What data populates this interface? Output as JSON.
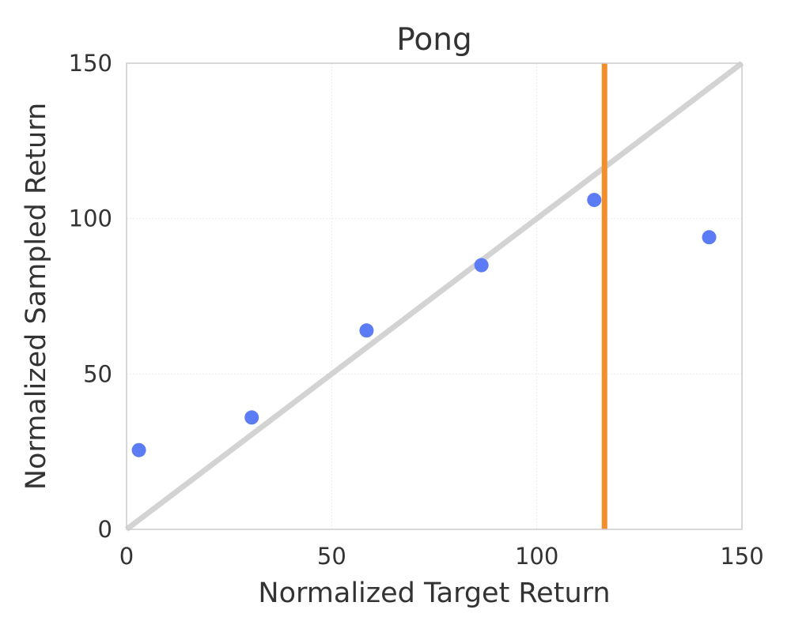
{
  "chart_data": {
    "type": "scatter",
    "title": "Pong",
    "xlabel": "Normalized Target Return",
    "ylabel": "Normalized Sampled Return",
    "xlim": [
      0,
      150
    ],
    "ylim": [
      0,
      150
    ],
    "xticks": [
      0,
      50,
      100,
      150
    ],
    "yticks": [
      0,
      50,
      100,
      150
    ],
    "grid": true,
    "series": [
      {
        "color": "#5b7cf5",
        "points": [
          {
            "x": 3,
            "y": 25.5
          },
          {
            "x": 30.5,
            "y": 36
          },
          {
            "x": 58.5,
            "y": 64
          },
          {
            "x": 86.5,
            "y": 85
          },
          {
            "x": 114,
            "y": 106
          },
          {
            "x": 142,
            "y": 94
          }
        ]
      }
    ],
    "reference_lines": [
      {
        "kind": "diagonal",
        "from": [
          0,
          0
        ],
        "to": [
          150,
          150
        ],
        "color": "#d3d3d3"
      },
      {
        "kind": "vertical",
        "x": 116.5,
        "color": "#f28e2b"
      }
    ]
  }
}
